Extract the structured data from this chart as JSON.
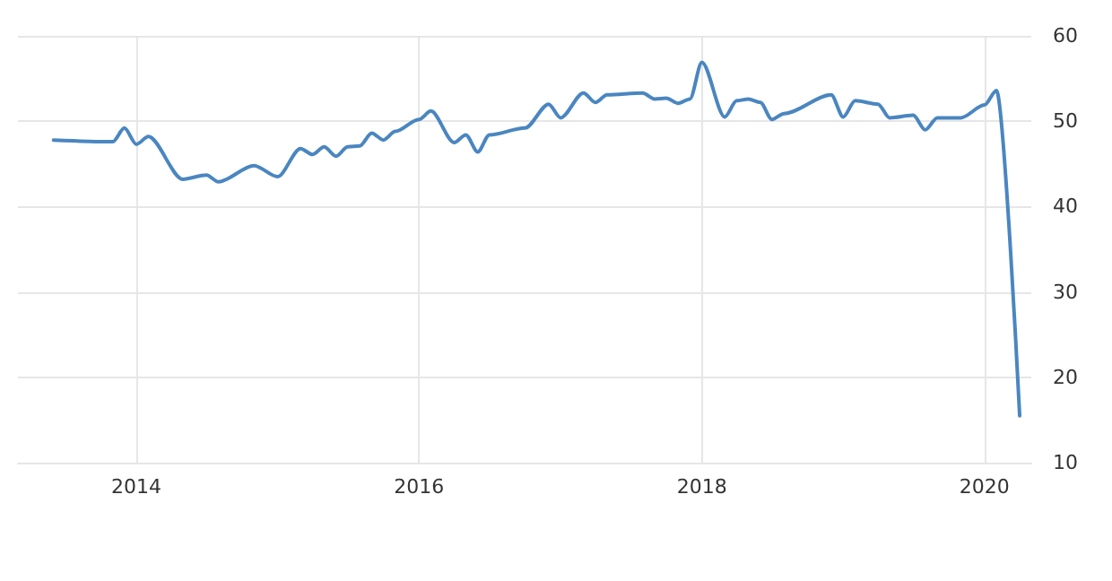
{
  "chart_data": {
    "type": "line",
    "x": [
      "2013-06",
      "2013-11",
      "2013-12",
      "2014-01",
      "2014-02",
      "2014-05",
      "2014-07",
      "2014-08",
      "2014-11",
      "2015-01",
      "2015-03",
      "2015-04",
      "2015-05",
      "2015-06",
      "2015-07",
      "2015-08",
      "2015-09",
      "2015-10",
      "2015-11",
      "2016-01",
      "2016-02",
      "2016-04",
      "2016-05",
      "2016-06",
      "2016-07",
      "2016-10",
      "2016-12",
      "2017-01",
      "2017-03",
      "2017-04",
      "2017-05",
      "2017-08",
      "2017-09",
      "2017-10",
      "2017-11",
      "2017-12",
      "2018-01",
      "2018-03",
      "2018-04",
      "2018-05",
      "2018-06",
      "2018-07",
      "2018-08",
      "2018-12",
      "2019-01",
      "2019-02",
      "2019-04",
      "2019-05",
      "2019-07",
      "2019-08",
      "2019-09",
      "2019-11",
      "2020-01",
      "2020-02",
      "2020-04"
    ],
    "series": [
      {
        "color": "#4a86c0",
        "values": [
          47.8,
          47.6,
          49.2,
          47.3,
          48.2,
          43.2,
          43.7,
          42.9,
          44.8,
          43.5,
          46.8,
          46.1,
          47.0,
          45.9,
          47.0,
          47.1,
          48.6,
          47.8,
          48.8,
          50.2,
          51.2,
          47.5,
          48.4,
          46.4,
          48.4,
          49.2,
          52.0,
          50.4,
          53.3,
          52.2,
          53.1,
          53.3,
          52.6,
          52.7,
          52.1,
          52.6,
          56.9,
          50.5,
          52.4,
          52.6,
          52.2,
          50.2,
          50.9,
          53.1,
          50.5,
          52.4,
          52.0,
          50.4,
          50.7,
          49.0,
          50.4,
          50.4,
          51.9,
          53.6,
          15.5
        ]
      }
    ],
    "xlim": [
      "2013-03",
      "2020-05"
    ],
    "xticks": [
      "2014",
      "2016",
      "2018",
      "2020"
    ],
    "ylim": [
      10,
      60
    ],
    "yticks": [
      10,
      20,
      30,
      40,
      50,
      60
    ],
    "grid": true,
    "marker": "none"
  }
}
